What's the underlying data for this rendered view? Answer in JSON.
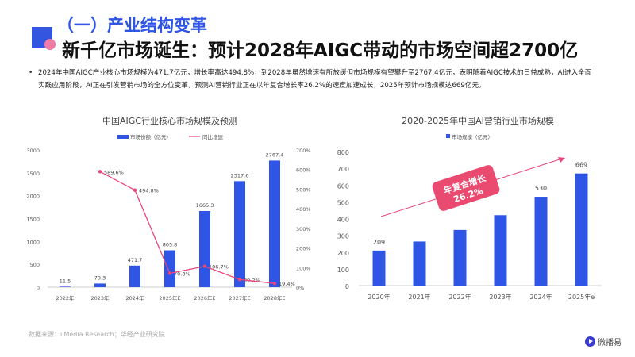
{
  "header": {
    "section": "（一）产业结构变革",
    "title": "新千亿市场诞生：预计2028年AIGC带动的市场空间超2700亿"
  },
  "body": {
    "bullet": "•",
    "text": "2024年中国AIGC产业核心市场规模为471.7亿元，增长率高达494.8%，到2028年虽然增速有所放缓但市场规模有望攀升至2767.4亿元，表明随着AIGC技术的日益成熟，AI进入全面实践应用阶段，AI正在引发营销市场的全方位变革，预测AI营销行业正在以年复合增长率26.2%的速度加速成长，2025年预计市场规模达669亿元。"
  },
  "colors": {
    "bar": "#2f55e6",
    "line": "#e8457a",
    "accent": "#2f55e6"
  },
  "chart_data": [
    {
      "type": "bar+line",
      "title": "中国AIGC行业核心市场规模及预测",
      "categories": [
        "2022年",
        "2023年",
        "2024年",
        "2025年E",
        "2026年E",
        "2027年E",
        "2028年E"
      ],
      "series": [
        {
          "name": "市场份额（亿元）",
          "type": "bar",
          "axis": "left",
          "values": [
            11.5,
            79.3,
            471.7,
            805.8,
            1665.3,
            2317.6,
            2767.4
          ],
          "labels": [
            "11.5",
            "79.3",
            "471.7",
            "805.8",
            "1665.3",
            "2317.6",
            "2767.4"
          ]
        },
        {
          "name": "同比增速",
          "type": "line",
          "axis": "right",
          "values": [
            null,
            589.6,
            494.8,
            70.8,
            106.7,
            39.2,
            19.4
          ],
          "labels": [
            "",
            "589.6%",
            "494.8%",
            "70.8%",
            "106.7%",
            "39.2%",
            "19.4%"
          ]
        }
      ],
      "ylim": [
        0,
        3000
      ],
      "yticks": [
        "0",
        "500",
        "1000",
        "1500",
        "2000",
        "2500",
        "3000"
      ],
      "y2lim": [
        0,
        700
      ],
      "y2ticks": [
        "0%",
        "100%",
        "200%",
        "300%",
        "400%",
        "500%",
        "600%",
        "700%"
      ],
      "legend": "top"
    },
    {
      "type": "bar",
      "title": "2020-2025年中国AI营销行业市场规模",
      "categories": [
        "2020年",
        "2021年",
        "2022年",
        "2023年",
        "2024年",
        "2025年e"
      ],
      "series": [
        {
          "name": "市场规模（亿元）",
          "values": [
            209,
            263,
            332,
            420,
            530,
            669
          ],
          "labels": [
            "209",
            "",
            "",
            "",
            "530",
            "669"
          ]
        }
      ],
      "ylim": [
        0,
        800
      ],
      "yticks": [
        "0",
        "100",
        "200",
        "300",
        "400",
        "500",
        "600",
        "700",
        "800"
      ],
      "annotation": {
        "line1": "年复合增长",
        "line2": "26.2%"
      },
      "legend": "top"
    }
  ],
  "footer": {
    "source": "数据来源：iiMedia Research；华经产业研究院",
    "logo": "微播易"
  }
}
